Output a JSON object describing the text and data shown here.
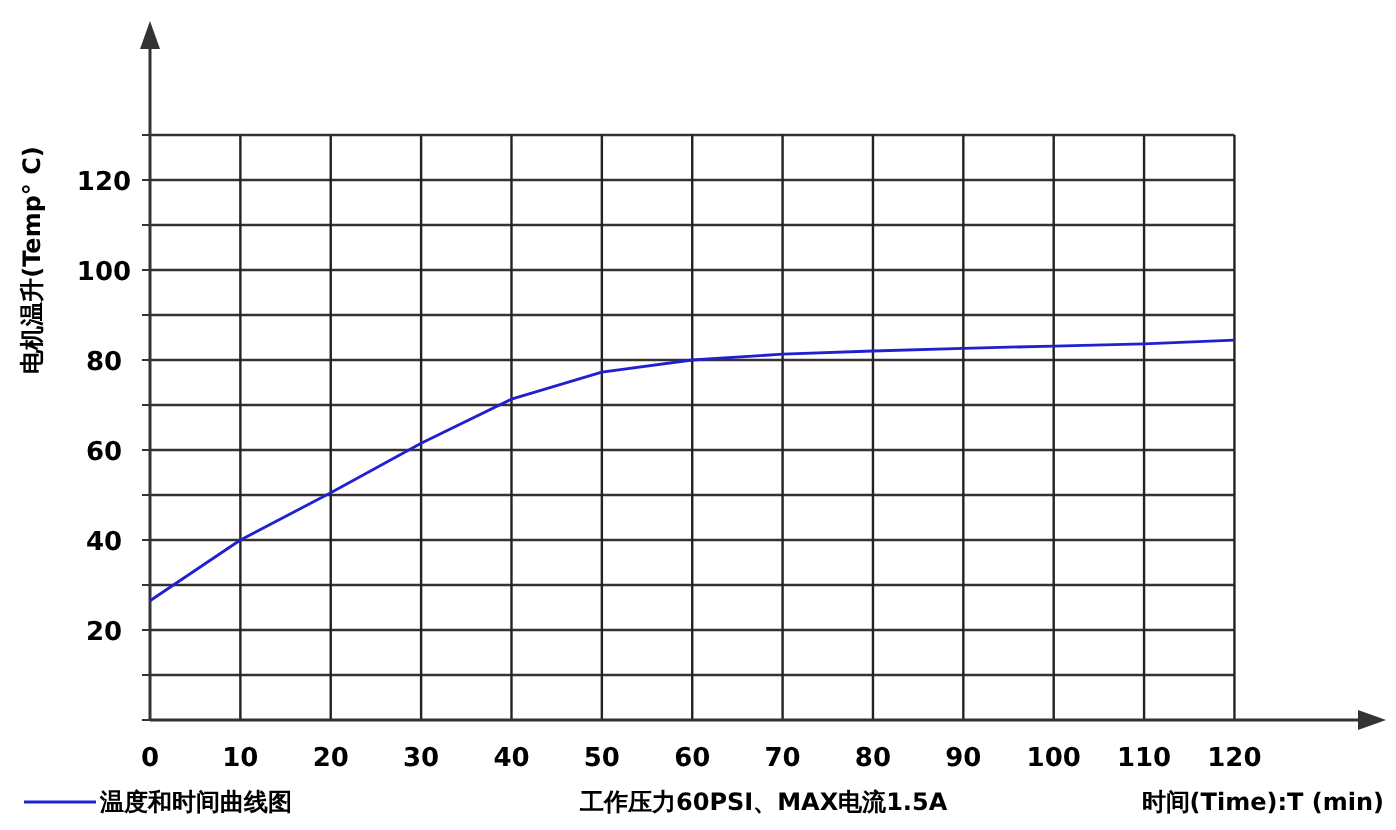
{
  "chart_data": {
    "type": "line",
    "xlabel": "时间(Time):T (min)",
    "ylabel": "电机温升(Temp° C)",
    "annotations": [
      "工作压力60PSI、MAX电流1.5A"
    ],
    "x": [
      0,
      10,
      20,
      30,
      40,
      50,
      60,
      70,
      80,
      90,
      100,
      110,
      120
    ],
    "series": [
      {
        "name": "温度和时间曲线图",
        "color": "#2020d0",
        "values": [
          26.5,
          40,
          50.5,
          61.5,
          71.3,
          77.3,
          80,
          81.3,
          82,
          82.6,
          83.1,
          83.6,
          84.4
        ]
      }
    ],
    "xlim": [
      0,
      135
    ],
    "ylim": [
      0,
      150
    ],
    "xticks": [
      0,
      10,
      20,
      30,
      40,
      50,
      60,
      70,
      80,
      90,
      100,
      110,
      120
    ],
    "yticks": [
      {
        "value": 0,
        "label": null
      },
      {
        "value": 10,
        "label": null
      },
      20,
      {
        "value": 30,
        "label": null
      },
      40,
      {
        "value": 50,
        "label": null
      },
      60,
      {
        "value": 70,
        "label": null
      },
      80,
      {
        "value": 90,
        "label": null
      },
      100,
      {
        "value": 110,
        "label": null
      },
      120,
      {
        "value": 130,
        "label": null
      }
    ],
    "grid": true,
    "legend": "bottom",
    "marker": "none",
    "line_style": "solid"
  }
}
